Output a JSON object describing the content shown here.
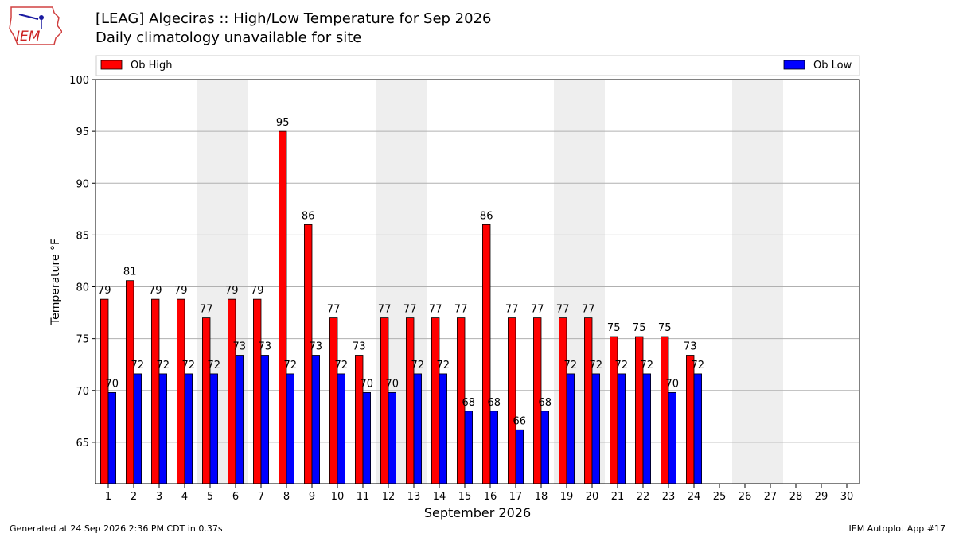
{
  "header": {
    "title_line1": "[LEAG] Algeciras :: High/Low Temperature for Sep 2026",
    "title_line2": "Daily climatology unavailable for site",
    "logo_text": "IEM"
  },
  "footer": {
    "generated": "Generated at 24 Sep 2026 2:36 PM CDT in 0.37s",
    "app": "IEM Autoplot App #17"
  },
  "colors": {
    "high": "#ff0000",
    "low": "#0000ff",
    "weekend": "#eeeeee",
    "grid": "#b0b0b0"
  },
  "chart_data": {
    "type": "bar",
    "xlabel": "September 2026",
    "ylabel": "Temperature °F",
    "ylim": [
      61,
      100
    ],
    "yticks": [
      65,
      70,
      75,
      80,
      85,
      90,
      95,
      100
    ],
    "grid": true,
    "legend_placement": "top",
    "categories": [
      "1",
      "2",
      "3",
      "4",
      "5",
      "6",
      "7",
      "8",
      "9",
      "10",
      "11",
      "12",
      "13",
      "14",
      "15",
      "16",
      "17",
      "18",
      "19",
      "20",
      "21",
      "22",
      "23",
      "24",
      "25",
      "26",
      "27",
      "28",
      "29",
      "30"
    ],
    "shaded_weekends": [
      [
        "5",
        "6"
      ],
      [
        "12",
        "13"
      ],
      [
        "19",
        "20"
      ],
      [
        "26",
        "27"
      ]
    ],
    "series": [
      {
        "name": "Ob High",
        "color": "#ff0000",
        "values": [
          78.8,
          80.6,
          78.8,
          78.8,
          77,
          78.8,
          78.8,
          95,
          86,
          77,
          73.4,
          77,
          77,
          77,
          77,
          86,
          77,
          77,
          77,
          77,
          75.2,
          75.2,
          75.2,
          73.4,
          null,
          null,
          null,
          null,
          null,
          null
        ],
        "labels": [
          "79",
          "81",
          "79",
          "79",
          "77",
          "79",
          "79",
          "95",
          "86",
          "77",
          "73",
          "77",
          "77",
          "77",
          "77",
          "86",
          "77",
          "77",
          "77",
          "77",
          "75",
          "75",
          "75",
          "73",
          "",
          "",
          "",
          "",
          "",
          ""
        ]
      },
      {
        "name": "Ob Low",
        "color": "#0000ff",
        "values": [
          69.8,
          71.6,
          71.6,
          71.6,
          71.6,
          73.4,
          73.4,
          71.6,
          73.4,
          71.6,
          69.8,
          69.8,
          71.6,
          71.6,
          68,
          68,
          66.2,
          68,
          71.6,
          71.6,
          71.6,
          71.6,
          69.8,
          71.6,
          null,
          null,
          null,
          null,
          null,
          null
        ],
        "labels": [
          "70",
          "72",
          "72",
          "72",
          "72",
          "73",
          "73",
          "72",
          "73",
          "72",
          "70",
          "70",
          "72",
          "72",
          "68",
          "68",
          "66",
          "68",
          "72",
          "72",
          "72",
          "72",
          "70",
          "72",
          "",
          "",
          "",
          "",
          "",
          ""
        ]
      }
    ]
  }
}
